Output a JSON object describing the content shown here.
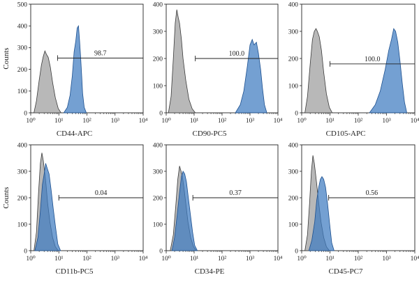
{
  "colors": {
    "control_fill": "#b4b4b4",
    "control_line": "#3a3a3a",
    "stain_fill": "#3f7bc1",
    "stain_line": "#1c4f8e",
    "overlap_fill": "#5a6b82",
    "axis": "#222222"
  },
  "chart_data": [
    {
      "type": "area",
      "xlabel": "CD44-APC",
      "ylabel": "Counts",
      "xscale": "log",
      "xlim": [
        1,
        10000
      ],
      "ylim": [
        0,
        500
      ],
      "yticks": [
        0,
        100,
        200,
        300,
        400,
        500
      ],
      "xticks": [
        "10⁰",
        "10¹",
        "10²",
        "10³",
        "10⁴"
      ],
      "gate": {
        "label": "98.7",
        "from": 9,
        "to": 10000,
        "y": 252
      },
      "series": [
        {
          "role": "control",
          "x": [
            1.3,
            1.6,
            2,
            2.4,
            2.8,
            3.2,
            3.6,
            4.2,
            5,
            6,
            7.5,
            9.5,
            12
          ],
          "values": [
            0,
            55,
            150,
            220,
            260,
            285,
            270,
            255,
            210,
            140,
            70,
            20,
            0
          ]
        },
        {
          "role": "stained",
          "x": [
            15,
            20,
            25,
            30,
            35,
            40,
            45,
            50,
            55,
            60,
            65,
            70,
            80,
            95
          ],
          "values": [
            0,
            25,
            80,
            170,
            280,
            330,
            390,
            400,
            330,
            250,
            170,
            90,
            25,
            0
          ]
        }
      ]
    },
    {
      "type": "area",
      "xlabel": "CD90-PC5",
      "ylabel": "",
      "xscale": "log",
      "xlim": [
        1,
        10000
      ],
      "ylim": [
        0,
        400
      ],
      "yticks": [
        0,
        100,
        200,
        300,
        400
      ],
      "xticks": [
        "10⁰",
        "10¹",
        "10²",
        "10³",
        "10⁴"
      ],
      "gate": {
        "label": "100.0",
        "from": 11,
        "to": 10000,
        "y": 200
      },
      "series": [
        {
          "role": "control",
          "x": [
            1.2,
            1.5,
            1.8,
            2.1,
            2.4,
            2.7,
            3,
            3.5,
            4,
            5,
            6.5,
            8.5,
            11
          ],
          "values": [
            0,
            60,
            200,
            330,
            380,
            350,
            330,
            270,
            200,
            120,
            50,
            15,
            0
          ]
        },
        {
          "role": "stained",
          "x": [
            300,
            450,
            600,
            800,
            1000,
            1200,
            1400,
            1700,
            2000,
            2400,
            2800,
            3300,
            4000
          ],
          "values": [
            0,
            30,
            80,
            170,
            250,
            270,
            250,
            260,
            220,
            160,
            90,
            30,
            0
          ]
        }
      ]
    },
    {
      "type": "area",
      "xlabel": "CD105-APC",
      "ylabel": "",
      "xscale": "log",
      "xlim": [
        1,
        10000
      ],
      "ylim": [
        0,
        400
      ],
      "yticks": [
        0,
        100,
        200,
        300,
        400
      ],
      "xticks": [
        "10⁰",
        "10¹",
        "10²",
        "10³",
        "10⁴"
      ],
      "gate": {
        "label": "100.0",
        "from": 10,
        "to": 10000,
        "y": 180
      },
      "series": [
        {
          "role": "control",
          "x": [
            1.3,
            1.6,
            2,
            2.4,
            2.8,
            3.2,
            3.6,
            4.2,
            5,
            6,
            7.5,
            9.5,
            12
          ],
          "values": [
            0,
            60,
            180,
            270,
            300,
            310,
            300,
            280,
            230,
            150,
            70,
            20,
            0
          ]
        },
        {
          "role": "stained",
          "x": [
            250,
            400,
            600,
            900,
            1200,
            1500,
            1800,
            2100,
            2500,
            3000,
            3600,
            4300,
            5200
          ],
          "values": [
            0,
            30,
            80,
            160,
            230,
            270,
            310,
            300,
            260,
            190,
            110,
            40,
            0
          ]
        }
      ]
    },
    {
      "type": "area",
      "xlabel": "CD11b-PC5",
      "ylabel": "Counts",
      "xscale": "log",
      "xlim": [
        1,
        10000
      ],
      "ylim": [
        0,
        400
      ],
      "yticks": [
        0,
        100,
        200,
        300,
        400
      ],
      "xticks": [
        "10⁰",
        "10¹",
        "10²",
        "10³",
        "10⁴"
      ],
      "gate": {
        "label": "0.04",
        "from": 10,
        "to": 10000,
        "y": 200
      },
      "series": [
        {
          "role": "control",
          "x": [
            1.3,
            1.6,
            1.9,
            2.2,
            2.5,
            2.8,
            3.1,
            3.5,
            4,
            4.8,
            6,
            7.5,
            9.5
          ],
          "values": [
            0,
            70,
            220,
            330,
            370,
            340,
            300,
            250,
            180,
            110,
            50,
            15,
            0
          ]
        },
        {
          "role": "stained",
          "x": [
            1.4,
            1.8,
            2.2,
            2.6,
            3,
            3.4,
            3.9,
            4.5,
            5.3,
            6.3,
            7.6,
            9.2,
            11.5
          ],
          "values": [
            0,
            50,
            150,
            250,
            290,
            330,
            310,
            290,
            230,
            160,
            90,
            25,
            0
          ]
        }
      ]
    },
    {
      "type": "area",
      "xlabel": "CD34-PE",
      "ylabel": "",
      "xscale": "log",
      "xlim": [
        1,
        10000
      ],
      "ylim": [
        0,
        400
      ],
      "yticks": [
        0,
        100,
        200,
        300,
        400
      ],
      "xticks": [
        "10⁰",
        "10¹",
        "10²",
        "10³",
        "10⁴"
      ],
      "gate": {
        "label": "0.37",
        "from": 9,
        "to": 10000,
        "y": 200
      },
      "series": [
        {
          "role": "control",
          "x": [
            1.4,
            1.8,
            2.2,
            2.6,
            3,
            3.4,
            3.8,
            4.3,
            5,
            6,
            7.5,
            9.5,
            12
          ],
          "values": [
            0,
            60,
            170,
            270,
            320,
            300,
            280,
            240,
            180,
            110,
            50,
            15,
            0
          ]
        },
        {
          "role": "stained",
          "x": [
            1.6,
            2,
            2.5,
            3,
            3.5,
            4,
            4.6,
            5.3,
            6.2,
            7.3,
            8.8,
            10.5,
            13
          ],
          "values": [
            0,
            50,
            140,
            220,
            280,
            300,
            290,
            260,
            200,
            140,
            70,
            20,
            0
          ]
        }
      ]
    },
    {
      "type": "area",
      "xlabel": "CD45-PC7",
      "ylabel": "",
      "xscale": "log",
      "xlim": [
        1,
        10000
      ],
      "ylim": [
        0,
        400
      ],
      "yticks": [
        0,
        100,
        200,
        300,
        400
      ],
      "xticks": [
        "10⁰",
        "10¹",
        "10²",
        "10³",
        "10⁴"
      ],
      "gate": {
        "label": "0.56",
        "from": 9,
        "to": 10000,
        "y": 200
      },
      "series": [
        {
          "role": "control",
          "x": [
            1.3,
            1.6,
            1.9,
            2.2,
            2.5,
            2.8,
            3.1,
            3.5,
            4,
            4.8,
            6,
            7.5,
            9.5
          ],
          "values": [
            0,
            60,
            180,
            300,
            360,
            330,
            290,
            240,
            180,
            110,
            50,
            15,
            0
          ]
        },
        {
          "role": "stained",
          "x": [
            1.8,
            2.3,
            2.9,
            3.4,
            4,
            4.6,
            5.2,
            6,
            7,
            8.2,
            9.8,
            11.5,
            14
          ],
          "values": [
            0,
            40,
            110,
            190,
            240,
            270,
            280,
            270,
            240,
            180,
            100,
            30,
            0
          ]
        }
      ]
    }
  ]
}
